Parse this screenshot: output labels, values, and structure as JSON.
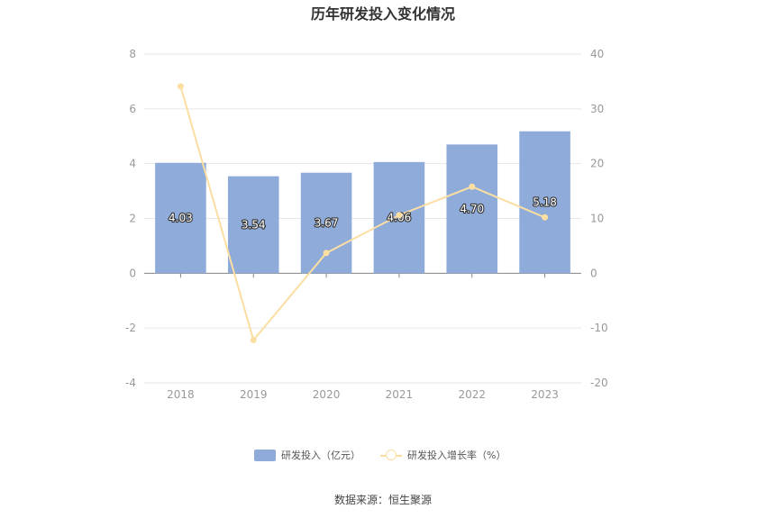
{
  "chart_data": {
    "type": "bar",
    "title": "历年研发投入变化情况",
    "categories": [
      "2018",
      "2019",
      "2020",
      "2021",
      "2022",
      "2023"
    ],
    "series": [
      {
        "name": "研发投入（亿元）",
        "type": "bar",
        "axis": "left",
        "values": [
          4.03,
          3.54,
          3.67,
          4.06,
          4.7,
          5.18
        ],
        "labels": [
          "4.03",
          "3.54",
          "3.67",
          "4.06",
          "4.70",
          "5.18"
        ]
      },
      {
        "name": "研发投入增长率（%）",
        "type": "line",
        "axis": "right",
        "values": [
          34.1,
          -12.2,
          3.7,
          10.6,
          15.8,
          10.2
        ]
      }
    ],
    "y_left": {
      "min": -4,
      "max": 8,
      "ticks": [
        "-4",
        "-2",
        "0",
        "2",
        "4",
        "6",
        "8"
      ]
    },
    "y_right": {
      "min": -20,
      "max": 40,
      "ticks": [
        "-20",
        "-10",
        "0",
        "10",
        "20",
        "30",
        "40"
      ]
    },
    "grid": true,
    "legend_position": "bottom",
    "colors": {
      "bar": "#8eabd9",
      "line": "#fbdea2",
      "grid": "#e6e6e6",
      "axis_text": "#999999"
    }
  },
  "source": "数据来源：恒生聚源"
}
